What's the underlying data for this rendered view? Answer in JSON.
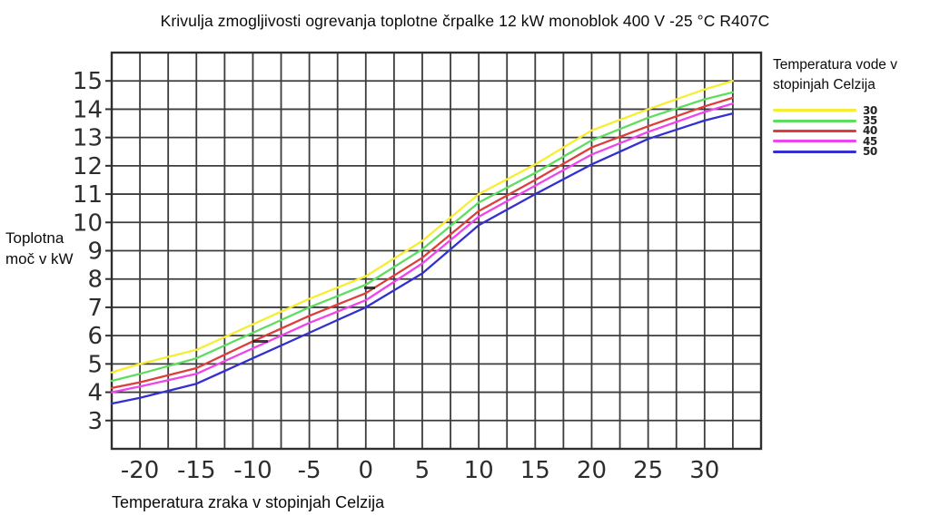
{
  "title": "Krivulja zmogljivosti ogrevanja toplotne črpalke 12 kW monoblok 400 V -25 °C R407C",
  "y_axis_title": "Toplotna moč v kW",
  "x_axis_title": "Temperatura zraka v stopinjah Celzija",
  "legend": {
    "title": "Temperatura vode v stopinjah Celzija",
    "entries": [
      {
        "label": "30",
        "color": "#f6ee32"
      },
      {
        "label": "35",
        "color": "#5fdd60"
      },
      {
        "label": "40",
        "color": "#dd3d3d"
      },
      {
        "label": "45",
        "color": "#ee44ee"
      },
      {
        "label": "50",
        "color": "#3430cf"
      }
    ]
  },
  "chart_data": {
    "type": "line",
    "title": "Krivulja zmogljivosti ogrevanja toplotne črpalke 12 kW monoblok 400 V -25 °C R407C",
    "xlabel": "Temperatura zraka v stopinjah Celzija",
    "ylabel": "Toplotna moč v kW",
    "xlim": [
      -22.5,
      35
    ],
    "ylim": [
      2,
      16
    ],
    "grid": {
      "x_step": 2.5,
      "y_step": 1,
      "color": "#3c3c3c"
    },
    "legend_position": "top-right",
    "xticks": {
      "values": [
        -20,
        -15,
        -10,
        -5,
        0,
        5,
        10,
        15,
        20,
        25,
        30
      ],
      "labels": [
        "-20",
        "-15",
        "-10",
        "-5",
        "0",
        "5",
        "10",
        "15",
        "20",
        "25",
        "30"
      ]
    },
    "yticks": {
      "values": [
        3,
        4,
        5,
        6,
        7,
        8,
        9,
        10,
        11,
        12,
        13,
        14,
        15
      ],
      "labels": [
        "3",
        "4",
        "5",
        "6",
        "7",
        "8",
        "9",
        "10",
        "11",
        "12",
        "13",
        "14",
        "15"
      ]
    },
    "x": [
      -22.5,
      -20,
      -15,
      -10,
      -5,
      0,
      5,
      10,
      15,
      20,
      25,
      30,
      32.5
    ],
    "series": [
      {
        "name": "30",
        "color": "#f6ee32",
        "values": [
          4.7,
          5.0,
          5.5,
          6.4,
          7.3,
          8.1,
          9.35,
          11.0,
          12.05,
          13.25,
          14.0,
          14.7,
          15.0
        ]
      },
      {
        "name": "35",
        "color": "#5fdd60",
        "values": [
          4.4,
          4.65,
          5.2,
          6.1,
          7.0,
          7.8,
          9.05,
          10.7,
          11.75,
          12.9,
          13.7,
          14.35,
          14.6
        ]
      },
      {
        "name": "40",
        "color": "#dd3d3d",
        "values": [
          4.15,
          4.35,
          4.85,
          5.8,
          6.7,
          7.5,
          8.75,
          10.4,
          11.5,
          12.65,
          13.4,
          14.1,
          14.4
        ]
      },
      {
        "name": "45",
        "color": "#ee44ee",
        "values": [
          4.0,
          4.2,
          4.65,
          5.55,
          6.45,
          7.25,
          8.55,
          10.2,
          11.3,
          12.4,
          13.2,
          13.9,
          14.2
        ]
      },
      {
        "name": "50",
        "color": "#3430cf",
        "values": [
          3.6,
          3.8,
          4.3,
          5.2,
          6.1,
          7.0,
          8.2,
          9.9,
          11.0,
          12.05,
          12.95,
          13.6,
          13.85
        ]
      }
    ],
    "artifacts": [
      {
        "x": 401,
        "y": 316,
        "w": 12,
        "h": 3
      },
      {
        "x": 278,
        "y": 375,
        "w": 17,
        "h": 3
      }
    ]
  }
}
